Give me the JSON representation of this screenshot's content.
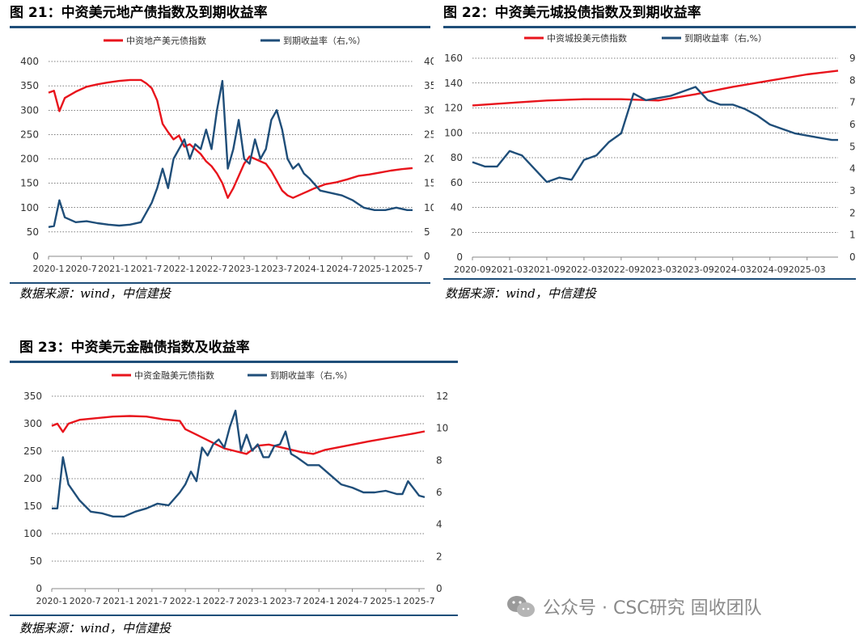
{
  "figures": [
    {
      "id": "fig21",
      "title": "图 21：中资美元地产债指数及到期收益率",
      "source": "数据来源：wind，中信建投"
    },
    {
      "id": "fig22",
      "title": "图 22：中资美元城投债指数及到期收益率",
      "source": "数据来源：wind，中信建投"
    },
    {
      "id": "fig23",
      "title": "图 23：中资美元金融债指数及收益率",
      "source": "数据来源：wind，中信建投"
    }
  ],
  "watermark": {
    "text": "公众号 · CSC研究 固收团队",
    "icon": "wechat-icon"
  },
  "chart_data": [
    {
      "type": "line",
      "title": "图 21：中资美元地产债指数及到期收益率",
      "x_type": "time",
      "x_range": [
        "2020-01",
        "2025-08"
      ],
      "x_ticks": [
        "2020-1",
        "2020-7",
        "2021-1",
        "2021-7",
        "2022-1",
        "2022-7",
        "2023-1",
        "2023-7",
        "2024-1",
        "2024-7",
        "2025-1",
        "2025-7"
      ],
      "ylim": [
        0,
        400
      ],
      "yticks": [
        0,
        50,
        100,
        150,
        200,
        250,
        300,
        350,
        400
      ],
      "y2lim": [
        0,
        40
      ],
      "y2ticks": [
        0,
        5,
        10,
        15,
        20,
        25,
        30,
        35,
        40
      ],
      "grid": true,
      "legend": "top-center",
      "colors": {
        "index": "#e8141c",
        "yield": "#1f4e79"
      },
      "series": [
        {
          "name": "中资地产美元债指数",
          "axis": "left",
          "x": [
            "2020-01",
            "2020-02",
            "2020-03",
            "2020-04",
            "2020-06",
            "2020-08",
            "2020-10",
            "2020-12",
            "2021-02",
            "2021-04",
            "2021-06",
            "2021-07",
            "2021-08",
            "2021-09",
            "2021-10",
            "2021-11",
            "2021-12",
            "2022-01",
            "2022-02",
            "2022-03",
            "2022-05",
            "2022-06",
            "2022-07",
            "2022-08",
            "2022-09",
            "2022-10",
            "2022-11",
            "2022-12",
            "2023-01",
            "2023-02",
            "2023-03",
            "2023-05",
            "2023-06",
            "2023-07",
            "2023-08",
            "2023-09",
            "2023-10",
            "2023-12",
            "2024-02",
            "2024-04",
            "2024-06",
            "2024-08",
            "2024-10",
            "2024-12",
            "2025-02",
            "2025-04",
            "2025-06",
            "2025-08"
          ],
          "y": [
            336,
            340,
            298,
            325,
            338,
            348,
            353,
            357,
            360,
            362,
            362,
            355,
            345,
            320,
            272,
            255,
            240,
            248,
            225,
            230,
            210,
            195,
            185,
            170,
            150,
            120,
            140,
            165,
            190,
            205,
            200,
            190,
            175,
            155,
            135,
            125,
            120,
            130,
            140,
            148,
            152,
            158,
            165,
            168,
            172,
            176,
            179,
            181
          ]
        },
        {
          "name": "到期收益率（右,%）",
          "axis": "right",
          "x": [
            "2020-01",
            "2020-02",
            "2020-03",
            "2020-04",
            "2020-06",
            "2020-08",
            "2020-10",
            "2020-12",
            "2021-02",
            "2021-04",
            "2021-06",
            "2021-07",
            "2021-08",
            "2021-09",
            "2021-10",
            "2021-11",
            "2021-12",
            "2022-01",
            "2022-02",
            "2022-03",
            "2022-04",
            "2022-05",
            "2022-06",
            "2022-07",
            "2022-08",
            "2022-09",
            "2022-10",
            "2022-11",
            "2022-12",
            "2023-01",
            "2023-02",
            "2023-03",
            "2023-04",
            "2023-05",
            "2023-06",
            "2023-07",
            "2023-08",
            "2023-09",
            "2023-10",
            "2023-11",
            "2023-12",
            "2024-01",
            "2024-03",
            "2024-05",
            "2024-07",
            "2024-09",
            "2024-11",
            "2025-01",
            "2025-03",
            "2025-05",
            "2025-07",
            "2025-08"
          ],
          "y": [
            6,
            6.2,
            11.5,
            8,
            7,
            7.2,
            6.8,
            6.5,
            6.3,
            6.5,
            7,
            9,
            11,
            14,
            18,
            14,
            20,
            22,
            24,
            20,
            23,
            22,
            26,
            22,
            30,
            36,
            18,
            22,
            28,
            20,
            19,
            24,
            20,
            22,
            28,
            30,
            26,
            20,
            18,
            19,
            17,
            16,
            13.5,
            13,
            12.5,
            11.5,
            10,
            9.5,
            9.5,
            10,
            9.5,
            9.5
          ]
        }
      ]
    },
    {
      "type": "line",
      "title": "图 22：中资美元城投债指数及到期收益率",
      "x_type": "time",
      "x_range": [
        "2020-09",
        "2025-08"
      ],
      "x_ticks": [
        "2020-09",
        "2021-03",
        "2021-09",
        "2022-03",
        "2022-09",
        "2023-03",
        "2023-09",
        "2024-03",
        "2024-09",
        "2025-03"
      ],
      "ylim": [
        0,
        160
      ],
      "yticks": [
        0,
        20,
        40,
        60,
        80,
        100,
        120,
        140,
        160
      ],
      "y2lim": [
        0,
        9
      ],
      "y2ticks": [
        0,
        1,
        2,
        3,
        4,
        5,
        6,
        7,
        8,
        9
      ],
      "grid": true,
      "legend": "top-center",
      "colors": {
        "index": "#e8141c",
        "yield": "#1f4e79"
      },
      "series": [
        {
          "name": "中资城投美元债指数",
          "axis": "left",
          "x": [
            "2020-09",
            "2021-03",
            "2021-09",
            "2022-03",
            "2022-09",
            "2023-03",
            "2023-09",
            "2024-03",
            "2024-09",
            "2025-03",
            "2025-08"
          ],
          "y": [
            122,
            124,
            126,
            127,
            127,
            126,
            131,
            137,
            142,
            147,
            150
          ]
        },
        {
          "name": "到期收益率（右,%）",
          "axis": "right",
          "x": [
            "2020-09",
            "2020-11",
            "2021-01",
            "2021-03",
            "2021-05",
            "2021-07",
            "2021-09",
            "2021-11",
            "2022-01",
            "2022-03",
            "2022-05",
            "2022-07",
            "2022-09",
            "2022-11",
            "2023-01",
            "2023-03",
            "2023-05",
            "2023-07",
            "2023-09",
            "2023-11",
            "2024-01",
            "2024-03",
            "2024-05",
            "2024-07",
            "2024-09",
            "2024-11",
            "2025-01",
            "2025-03",
            "2025-05",
            "2025-07",
            "2025-08"
          ],
          "y": [
            4.3,
            4.1,
            4.1,
            4.8,
            4.6,
            4.0,
            3.4,
            3.6,
            3.5,
            4.4,
            4.6,
            5.2,
            5.6,
            7.4,
            7.1,
            7.2,
            7.3,
            7.5,
            7.7,
            7.1,
            6.9,
            6.9,
            6.7,
            6.4,
            6.0,
            5.8,
            5.6,
            5.5,
            5.4,
            5.3,
            5.3
          ]
        }
      ]
    },
    {
      "type": "line",
      "title": "图 23：中资美元金融债指数及收益率",
      "x_type": "time",
      "x_range": [
        "2020-01",
        "2025-08"
      ],
      "x_ticks": [
        "2020-1",
        "2020-7",
        "2021-1",
        "2021-7",
        "2022-1",
        "2022-7",
        "2023-1",
        "2023-7",
        "2024-1",
        "2024-7",
        "2025-1",
        "2025-7"
      ],
      "ylim": [
        0,
        350
      ],
      "yticks": [
        0,
        50,
        100,
        150,
        200,
        250,
        300,
        350
      ],
      "y2lim": [
        0,
        12
      ],
      "y2ticks": [
        0,
        2,
        4,
        6,
        8,
        10,
        12
      ],
      "grid": true,
      "legend": "top-center",
      "colors": {
        "index": "#e8141c",
        "yield": "#1f4e79"
      },
      "series": [
        {
          "name": "中资金融美元债指数",
          "axis": "left",
          "x": [
            "2020-01",
            "2020-02",
            "2020-03",
            "2020-04",
            "2020-06",
            "2020-09",
            "2020-12",
            "2021-03",
            "2021-06",
            "2021-09",
            "2021-12",
            "2022-01",
            "2022-03",
            "2022-06",
            "2022-08",
            "2022-10",
            "2022-12",
            "2023-02",
            "2023-04",
            "2023-07",
            "2023-10",
            "2023-12",
            "2024-02",
            "2024-06",
            "2024-10",
            "2025-02",
            "2025-06",
            "2025-08"
          ],
          "y": [
            296,
            300,
            285,
            300,
            307,
            310,
            313,
            314,
            313,
            308,
            305,
            290,
            280,
            265,
            255,
            250,
            245,
            260,
            262,
            255,
            248,
            245,
            252,
            260,
            268,
            275,
            282,
            286
          ]
        },
        {
          "name": "到期收益率（右,%）",
          "axis": "right",
          "x": [
            "2020-01",
            "2020-02",
            "2020-03",
            "2020-04",
            "2020-06",
            "2020-08",
            "2020-10",
            "2020-12",
            "2021-02",
            "2021-04",
            "2021-06",
            "2021-08",
            "2021-10",
            "2021-12",
            "2022-01",
            "2022-02",
            "2022-03",
            "2022-04",
            "2022-05",
            "2022-06",
            "2022-07",
            "2022-08",
            "2022-09",
            "2022-10",
            "2022-11",
            "2022-12",
            "2023-01",
            "2023-02",
            "2023-03",
            "2023-04",
            "2023-05",
            "2023-06",
            "2023-07",
            "2023-08",
            "2023-09",
            "2023-11",
            "2024-01",
            "2024-03",
            "2024-05",
            "2024-07",
            "2024-09",
            "2024-11",
            "2025-01",
            "2025-03",
            "2025-04",
            "2025-05",
            "2025-07",
            "2025-08"
          ],
          "y": [
            5.0,
            5.0,
            8.2,
            6.5,
            5.5,
            4.8,
            4.7,
            4.5,
            4.5,
            4.8,
            5.0,
            5.3,
            5.2,
            6.0,
            6.5,
            7.3,
            6.7,
            8.8,
            8.3,
            9.0,
            9.3,
            8.8,
            10.1,
            11.1,
            8.6,
            9.6,
            8.6,
            9.0,
            8.2,
            8.2,
            8.9,
            9.0,
            9.8,
            8.4,
            8.2,
            7.7,
            7.7,
            7.1,
            6.5,
            6.3,
            6.0,
            6.0,
            6.1,
            5.9,
            5.9,
            6.7,
            5.8,
            5.7
          ]
        }
      ]
    }
  ]
}
